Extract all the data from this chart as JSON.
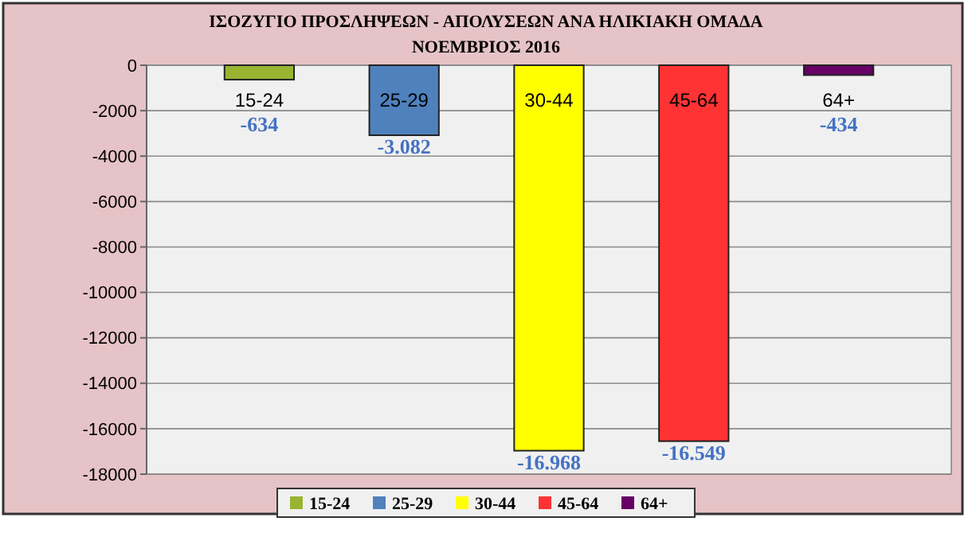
{
  "chart_data": {
    "type": "bar",
    "title": "ΙΣΟΖΥΓΙΟ ΠΡΟΣΛΗΨΕΩΝ - ΑΠΟΛΥΣΕΩΝ ΑΝΑ ΗΛΙΚΙΑΚΗ ΟΜΑΔΑ",
    "subtitle": "ΝΟΕΜΒΡΙΟΣ 2016",
    "categories": [
      null
    ],
    "series": [
      {
        "name": "15-24",
        "color": "#99b431",
        "values": [
          -634
        ],
        "value_labels": [
          "-634"
        ]
      },
      {
        "name": "25-29",
        "color": "#4f81bd",
        "values": [
          -3082
        ],
        "value_labels": [
          "-3.082"
        ]
      },
      {
        "name": "30-44",
        "color": "#ffff00",
        "values": [
          -16968
        ],
        "value_labels": [
          "-16.968"
        ]
      },
      {
        "name": "45-64",
        "color": "#ff3333",
        "values": [
          -16549
        ],
        "value_labels": [
          "-16.549"
        ]
      },
      {
        "name": "64+",
        "color": "#660066",
        "values": [
          -434
        ],
        "value_labels": [
          "-434"
        ]
      }
    ],
    "ylim": [
      -18000,
      0
    ],
    "yticks": [
      -18000,
      -16000,
      -14000,
      -12000,
      -10000,
      -8000,
      -6000,
      -4000,
      -2000,
      0
    ],
    "grid": "y",
    "legend": "bottom"
  }
}
